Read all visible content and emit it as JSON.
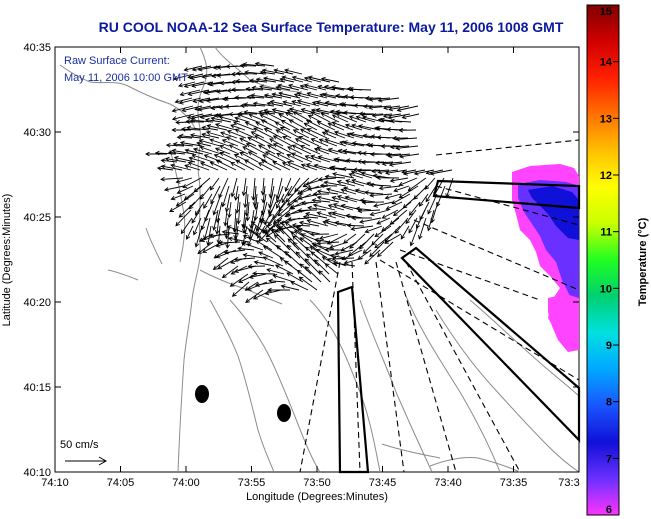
{
  "title": "RU COOL  NOAA-12  Sea Surface Temperature:  May 11, 2006 1008 GMT",
  "annotation": {
    "line1": "Raw Surface Current:",
    "line2": "May 11, 2006 10:00 GMT"
  },
  "scale_label": "50 cm/s",
  "chart_data": {
    "type": "map",
    "title": "RU COOL  NOAA-12  Sea Surface Temperature:  May 11, 2006 1008 GMT",
    "xlabel": "Longitude (Degrees:Minutes)",
    "ylabel": "Latitude (Degrees:Minutes)",
    "x_ticks": [
      "74:10",
      "74:05",
      "74:00",
      "73:55",
      "73:50",
      "73:45",
      "73:40",
      "73:35",
      "73:3"
    ],
    "y_ticks": [
      "40:35",
      "40:30",
      "40:25",
      "40:20",
      "40:15",
      "40:10"
    ],
    "lon_range_min": [
      -74.1667,
      -73.5
    ],
    "lat_range_min": [
      40.1667,
      40.5833
    ],
    "colorbar": {
      "label": "Temperature (°C)",
      "ticks": [
        "15",
        "14",
        "13",
        "12",
        "11",
        "10",
        "9",
        "8",
        "7",
        "6"
      ],
      "range": [
        6,
        15
      ],
      "colors": [
        "#ff33ff",
        "#6a30ff",
        "#1010d8",
        "#1a55ff",
        "#00a8ff",
        "#00e0e0",
        "#00d070",
        "#20ff20",
        "#c8ff00",
        "#ffff00",
        "#ffc000",
        "#ff7000",
        "#ff2000",
        "#d00000",
        "#800000"
      ]
    },
    "sst_observed_values_c": [
      6,
      6.5,
      7,
      7.5,
      8
    ]
  }
}
